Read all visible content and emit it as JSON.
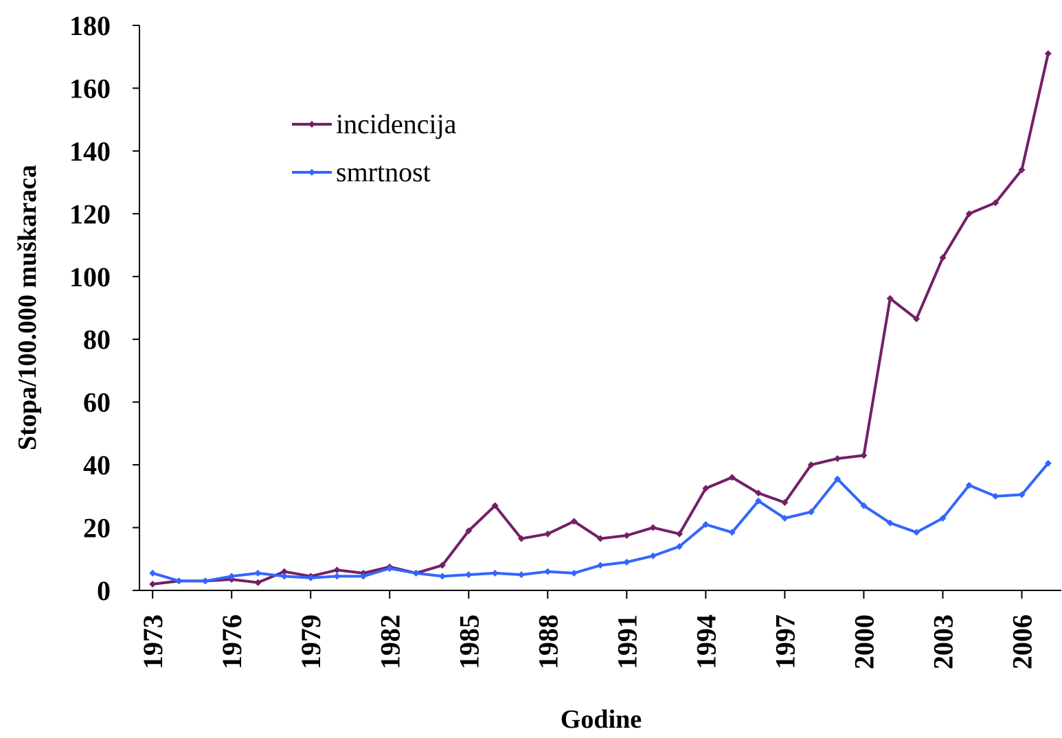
{
  "chart_data": {
    "type": "line",
    "x": [
      1973,
      1974,
      1975,
      1976,
      1977,
      1978,
      1979,
      1980,
      1981,
      1982,
      1983,
      1984,
      1985,
      1986,
      1987,
      1988,
      1989,
      1990,
      1991,
      1992,
      1993,
      1994,
      1995,
      1996,
      1997,
      1998,
      1999,
      2000,
      2001,
      2002,
      2003,
      2004,
      2005,
      2006,
      2007
    ],
    "series": [
      {
        "name": "incidencija",
        "color": "#722066",
        "values": [
          2,
          3,
          3,
          3.5,
          2.5,
          6,
          4.5,
          6.5,
          5.5,
          7.5,
          5.5,
          8,
          19,
          27,
          16.5,
          18,
          22,
          16.5,
          17.5,
          20,
          18,
          32.5,
          36,
          31,
          28,
          40,
          42,
          43,
          93,
          86.5,
          106,
          120,
          123.5,
          134,
          171
        ]
      },
      {
        "name": "smrtnost",
        "color": "#3366ff",
        "values": [
          5.5,
          3,
          3,
          4.5,
          5.5,
          4.5,
          4,
          4.5,
          4.5,
          7,
          5.5,
          4.5,
          5,
          5.5,
          5,
          6,
          5.5,
          8,
          9,
          11,
          14,
          21,
          18.5,
          28.5,
          23,
          25,
          35.5,
          27,
          21.5,
          18.5,
          23,
          33.5,
          30,
          30.5,
          40.5
        ]
      }
    ],
    "xlim": [
      1972.5,
      2007.5
    ],
    "xticks": [
      1973,
      1976,
      1979,
      1982,
      1985,
      1988,
      1991,
      1994,
      1997,
      2000,
      2003,
      2006
    ],
    "ylim": [
      0,
      180
    ],
    "yticks": [
      0,
      20,
      40,
      60,
      80,
      100,
      120,
      140,
      160,
      180
    ],
    "x_label": "Godine",
    "y_label": "Stopa/100.000 muškaraca",
    "legend": "upper left",
    "grid": false
  }
}
